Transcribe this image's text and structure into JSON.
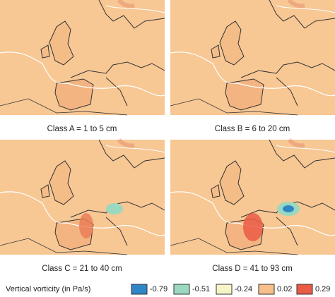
{
  "panels": [
    {
      "caption": "Class A = 1 to 5 cm"
    },
    {
      "caption": "Class B = 6 to 20 cm"
    },
    {
      "caption": "Class C = 21 to 40 cm"
    },
    {
      "caption": "Class D = 41 to 93 cm"
    }
  ],
  "legend": {
    "title": "Vertical vorticity (in Pa/s)",
    "items": [
      {
        "label": "-0.79",
        "color": "#2f86c6"
      },
      {
        "label": "-0.51",
        "color": "#9ad9bf"
      },
      {
        "label": "-0.24",
        "color": "#f6f5c8"
      },
      {
        "label": "0.02",
        "color": "#f7c08a"
      },
      {
        "label": "0.29",
        "color": "#ea5a45"
      }
    ]
  }
}
